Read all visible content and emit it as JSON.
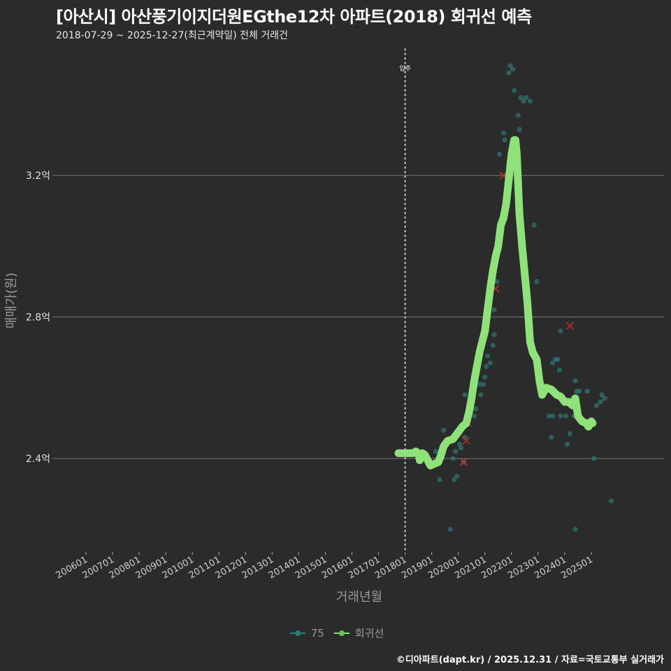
{
  "header": {
    "title": "[아산시] 아산풍기이지더원EGthe12차 아파트(2018) 회귀선 예측",
    "subtitle": "2018-07-29 ~ 2025-12-27(최근계약일) 전체 거래건"
  },
  "legend": {
    "items": [
      {
        "label": "75",
        "color": "#2a7f7a"
      },
      {
        "label": "회귀선",
        "color": "#8fe27a"
      }
    ]
  },
  "footer": {
    "credit": "©디아파트(dapt.kr) / 2025.12.31 / 자료=국토교통부 실거래가"
  },
  "colors": {
    "background": "#2b2b2b",
    "grid": "#7a7a7a",
    "scatter": "#2f8c86",
    "regression": "#8fe27a",
    "outlier": "#d0312d",
    "vline": "#cfcfcf"
  },
  "chart_data": {
    "type": "scatter",
    "title": "[아산시] 아산풍기이지더원EGthe12차 아파트(2018) 회귀선 예측",
    "subtitle": "2018-07-29 ~ 2025-12-27(최근계약일) 전체 거래건",
    "xlabel": "거래년월",
    "ylabel": "매매가(원)",
    "x_ticks": [
      "200601",
      "200701",
      "200801",
      "200901",
      "201001",
      "201101",
      "201201",
      "201301",
      "201401",
      "201501",
      "201601",
      "201701",
      "201801",
      "201901",
      "202001",
      "202101",
      "202201",
      "202301",
      "202401",
      "202501"
    ],
    "y_ticks": [
      {
        "value": 2.4,
        "label": "2.4억"
      },
      {
        "value": 2.8,
        "label": "2.8억"
      },
      {
        "value": 3.2,
        "label": "3.2억"
      }
    ],
    "ylim": [
      2.13,
      3.55
    ],
    "xlim": [
      2005.5,
      2026.3
    ],
    "grid": "horizontal",
    "legend_position": "bottom",
    "annotations": [
      {
        "type": "vline",
        "x": 2018.0,
        "label": "입주",
        "style": "dotted"
      }
    ],
    "series": [
      {
        "name": "75",
        "kind": "scatter",
        "points": [
          [
            2019.15,
            2.42
          ],
          [
            2019.3,
            2.34
          ],
          [
            2019.45,
            2.48
          ],
          [
            2019.7,
            2.2
          ],
          [
            2019.8,
            2.4
          ],
          [
            2019.85,
            2.34
          ],
          [
            2019.9,
            2.42
          ],
          [
            2019.95,
            2.35
          ],
          [
            2020.05,
            2.44
          ],
          [
            2020.1,
            2.43
          ],
          [
            2020.2,
            2.39
          ],
          [
            2020.25,
            2.46
          ],
          [
            2020.25,
            2.58
          ],
          [
            2020.3,
            2.5
          ],
          [
            2020.35,
            2.5
          ],
          [
            2020.45,
            2.53
          ],
          [
            2020.55,
            2.61
          ],
          [
            2020.6,
            2.52
          ],
          [
            2020.65,
            2.54
          ],
          [
            2020.8,
            2.61
          ],
          [
            2020.85,
            2.58
          ],
          [
            2020.95,
            2.61
          ],
          [
            2021.0,
            2.63
          ],
          [
            2021.05,
            2.66
          ],
          [
            2021.1,
            2.69
          ],
          [
            2021.2,
            2.67
          ],
          [
            2021.3,
            2.72
          ],
          [
            2021.35,
            2.75
          ],
          [
            2021.35,
            2.82
          ],
          [
            2021.45,
            2.9
          ],
          [
            2021.55,
            3.26
          ],
          [
            2021.7,
            3.32
          ],
          [
            2021.75,
            3.3
          ],
          [
            2021.9,
            3.49
          ],
          [
            2021.95,
            3.51
          ],
          [
            2022.05,
            3.5
          ],
          [
            2022.1,
            3.44
          ],
          [
            2022.25,
            3.37
          ],
          [
            2022.3,
            3.33
          ],
          [
            2022.35,
            3.42
          ],
          [
            2022.45,
            3.41
          ],
          [
            2022.55,
            3.42
          ],
          [
            2022.7,
            3.41
          ],
          [
            2022.85,
            3.06
          ],
          [
            2022.95,
            2.9
          ],
          [
            2023.3,
            2.6
          ],
          [
            2023.4,
            2.52
          ],
          [
            2023.5,
            2.46
          ],
          [
            2023.55,
            2.52
          ],
          [
            2023.55,
            2.67
          ],
          [
            2023.65,
            2.68
          ],
          [
            2023.75,
            2.68
          ],
          [
            2023.8,
            2.65
          ],
          [
            2023.85,
            2.52
          ],
          [
            2023.85,
            2.76
          ],
          [
            2024.05,
            2.52
          ],
          [
            2024.1,
            2.44
          ],
          [
            2024.2,
            2.47
          ],
          [
            2024.3,
            2.57
          ],
          [
            2024.35,
            2.52
          ],
          [
            2024.4,
            2.62
          ],
          [
            2024.45,
            2.59
          ],
          [
            2024.55,
            2.59
          ],
          [
            2024.85,
            2.59
          ],
          [
            2024.95,
            2.5
          ],
          [
            2025.1,
            2.4
          ],
          [
            2025.2,
            2.55
          ],
          [
            2025.35,
            2.56
          ],
          [
            2025.4,
            2.58
          ],
          [
            2025.5,
            2.57
          ],
          [
            2025.75,
            2.28
          ],
          [
            2024.4,
            2.2
          ]
        ]
      },
      {
        "name": "회귀선",
        "kind": "line",
        "points": [
          [
            2017.75,
            2.415
          ],
          [
            2018.0,
            2.415
          ],
          [
            2018.3,
            2.415
          ],
          [
            2018.4,
            2.42
          ],
          [
            2018.5,
            2.415
          ],
          [
            2018.55,
            2.395
          ],
          [
            2018.65,
            2.415
          ],
          [
            2018.75,
            2.41
          ],
          [
            2018.85,
            2.395
          ],
          [
            2018.95,
            2.38
          ],
          [
            2019.1,
            2.385
          ],
          [
            2019.25,
            2.39
          ],
          [
            2019.35,
            2.41
          ],
          [
            2019.45,
            2.435
          ],
          [
            2019.6,
            2.45
          ],
          [
            2019.8,
            2.455
          ],
          [
            2019.95,
            2.47
          ],
          [
            2020.05,
            2.48
          ],
          [
            2020.15,
            2.49
          ],
          [
            2020.3,
            2.5
          ],
          [
            2020.4,
            2.53
          ],
          [
            2020.5,
            2.57
          ],
          [
            2020.6,
            2.62
          ],
          [
            2020.7,
            2.66
          ],
          [
            2020.8,
            2.7
          ],
          [
            2020.9,
            2.73
          ],
          [
            2021.0,
            2.76
          ],
          [
            2021.1,
            2.82
          ],
          [
            2021.2,
            2.88
          ],
          [
            2021.3,
            2.93
          ],
          [
            2021.4,
            2.97
          ],
          [
            2021.5,
            3.0
          ],
          [
            2021.6,
            3.06
          ],
          [
            2021.7,
            3.08
          ],
          [
            2021.8,
            3.12
          ],
          [
            2021.9,
            3.19
          ],
          [
            2022.0,
            3.26
          ],
          [
            2022.1,
            3.3
          ],
          [
            2022.15,
            3.3
          ],
          [
            2022.2,
            3.26
          ],
          [
            2022.3,
            3.09
          ],
          [
            2022.4,
            3.0
          ],
          [
            2022.5,
            2.92
          ],
          [
            2022.6,
            2.84
          ],
          [
            2022.7,
            2.73
          ],
          [
            2022.8,
            2.7
          ],
          [
            2022.95,
            2.68
          ],
          [
            2023.05,
            2.62
          ],
          [
            2023.15,
            2.58
          ],
          [
            2023.3,
            2.6
          ],
          [
            2023.5,
            2.595
          ],
          [
            2023.7,
            2.58
          ],
          [
            2023.85,
            2.575
          ],
          [
            2024.0,
            2.56
          ],
          [
            2024.15,
            2.56
          ],
          [
            2024.3,
            2.55
          ],
          [
            2024.4,
            2.57
          ],
          [
            2024.5,
            2.52
          ],
          [
            2024.65,
            2.505
          ],
          [
            2024.8,
            2.5
          ],
          [
            2024.9,
            2.49
          ],
          [
            2025.0,
            2.505
          ],
          [
            2025.05,
            2.5
          ]
        ]
      },
      {
        "name": "outliers",
        "kind": "x-marker",
        "points": [
          [
            2021.7,
            3.2
          ],
          [
            2020.3,
            2.45
          ],
          [
            2020.35,
            2.5
          ],
          [
            2020.2,
            2.39
          ],
          [
            2021.4,
            2.88
          ],
          [
            2024.2,
            2.775
          ]
        ]
      }
    ]
  }
}
